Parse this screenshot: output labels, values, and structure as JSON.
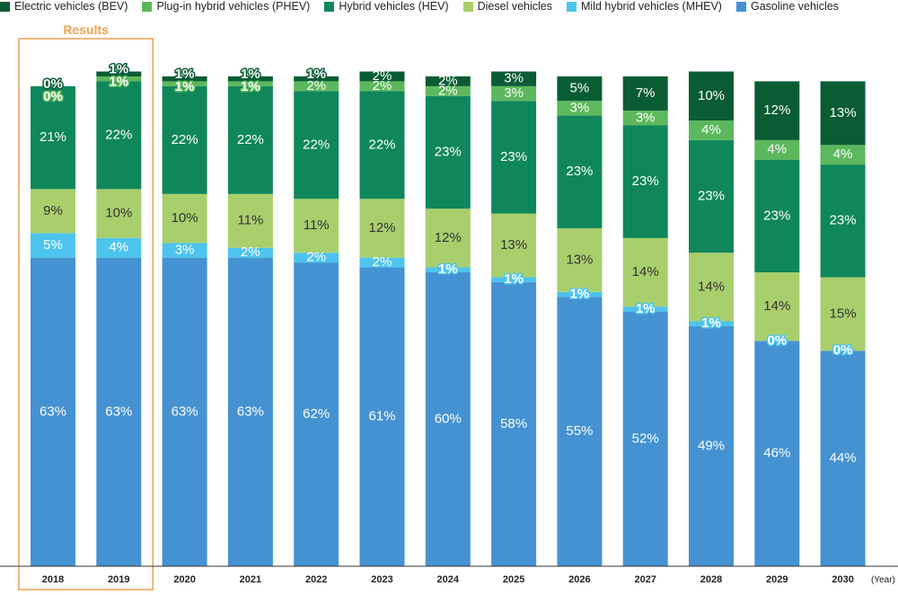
{
  "chart_data": {
    "type": "bar",
    "stacked": true,
    "categories": [
      "2018",
      "2019",
      "2020",
      "2021",
      "2022",
      "2023",
      "2024",
      "2025",
      "2026",
      "2027",
      "2028",
      "2029",
      "2030"
    ],
    "x_unit_label": "(Year)",
    "annotation": {
      "text": "Results",
      "categories": [
        "2018",
        "2019"
      ]
    },
    "legend_position": "top-left",
    "series": [
      {
        "name": "Gasoline vehicles",
        "color": "#4592d2",
        "values": [
          63,
          63,
          63,
          63,
          62,
          61,
          60,
          58,
          55,
          52,
          49,
          46,
          44
        ]
      },
      {
        "name": "Mild hybrid vehicles (MHEV)",
        "color": "#4dc4ee",
        "values": [
          5,
          4,
          3,
          2,
          2,
          2,
          1,
          1,
          1,
          1,
          1,
          0,
          0
        ]
      },
      {
        "name": "Diesel vehicles",
        "color": "#a8cf6c",
        "values": [
          9,
          10,
          10,
          11,
          11,
          12,
          12,
          13,
          13,
          14,
          14,
          14,
          15
        ]
      },
      {
        "name": "Hybrid vehicles (HEV)",
        "color": "#10875a",
        "values": [
          21,
          22,
          22,
          22,
          22,
          22,
          23,
          23,
          23,
          23,
          23,
          23,
          23
        ]
      },
      {
        "name": "Plug-in hybrid vehicles (PHEV)",
        "color": "#5cb85c",
        "values": [
          0,
          1,
          1,
          1,
          2,
          2,
          2,
          3,
          3,
          3,
          4,
          4,
          4
        ]
      },
      {
        "name": "Electric vehicles (BEV)",
        "color": "#0a5c35",
        "values": [
          0,
          1,
          1,
          1,
          1,
          2,
          2,
          3,
          5,
          7,
          10,
          12,
          13
        ]
      }
    ],
    "labels": {
      "Gasoline vehicles": [
        "63%",
        "63%",
        "63%",
        "63%",
        "62%",
        "61%",
        "60%",
        "58%",
        "55%",
        "52%",
        "49%",
        "46%",
        "44%"
      ],
      "Mild hybrid vehicles (MHEV)": [
        "5%",
        "4%",
        "3%",
        "2%",
        "2%",
        "2%",
        "1%",
        "1%",
        "1%",
        "1%",
        "1%",
        "0%",
        "0%"
      ],
      "Diesel vehicles": [
        "9%",
        "10%",
        "10%",
        "11%",
        "11%",
        "12%",
        "12%",
        "13%",
        "13%",
        "14%",
        "14%",
        "14%",
        "15%"
      ],
      "Hybrid vehicles (HEV)": [
        "21%",
        "22%",
        "22%",
        "22%",
        "22%",
        "22%",
        "23%",
        "23%",
        "23%",
        "23%",
        "23%",
        "23%",
        "23%"
      ],
      "Plug-in hybrid vehicles (PHEV)": [
        "0%",
        "1%",
        "1%",
        "1%",
        "2%",
        "2%",
        "2%",
        "3%",
        "3%",
        "3%",
        "4%",
        "4%",
        "4%"
      ],
      "Electric vehicles (BEV)": [
        "0%",
        "1%",
        "1%",
        "1%",
        "1%",
        "2%",
        "2%",
        "3%",
        "5%",
        "7%",
        "10%",
        "12%",
        "13%"
      ]
    },
    "legend_order": [
      "Electric vehicles (BEV)",
      "Plug-in hybrid vehicles (PHEV)",
      "Hybrid vehicles (HEV)",
      "Diesel vehicles",
      "Mild hybrid vehicles (MHEV)",
      "Gasoline vehicles"
    ]
  }
}
